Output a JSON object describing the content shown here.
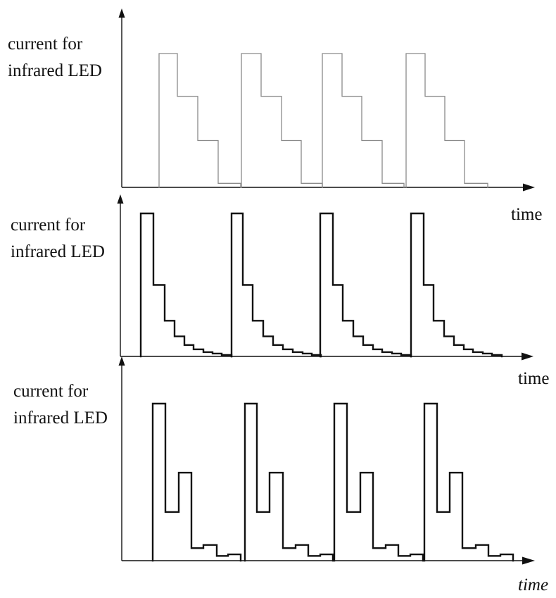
{
  "chart_data": [
    {
      "type": "line",
      "title": "",
      "ylabel": [
        "current for",
        "infrared LED"
      ],
      "xlabel": "time",
      "xlabel_italic": false,
      "color": "#8a8a8a",
      "x_range": [
        0,
        570
      ],
      "y_range": [
        0,
        100
      ],
      "pulses": [
        {
          "start": 53,
          "steps": [
            {
              "width": 26,
              "level": 100
            },
            {
              "width": 29,
              "level": 68
            },
            {
              "width": 29,
              "level": 35
            },
            {
              "width": 32,
              "level": 3
            }
          ]
        },
        {
          "start": 170,
          "steps": [
            {
              "width": 28,
              "level": 100
            },
            {
              "width": 29,
              "level": 68
            },
            {
              "width": 28,
              "level": 35
            },
            {
              "width": 30,
              "level": 3
            }
          ]
        },
        {
          "start": 285,
          "steps": [
            {
              "width": 28,
              "level": 100
            },
            {
              "width": 28,
              "level": 68
            },
            {
              "width": 29,
              "level": 35
            },
            {
              "width": 31,
              "level": 3
            }
          ]
        },
        {
          "start": 404,
          "steps": [
            {
              "width": 27,
              "level": 100
            },
            {
              "width": 28,
              "level": 68
            },
            {
              "width": 28,
              "level": 35
            },
            {
              "width": 33,
              "level": 3
            }
          ]
        }
      ]
    },
    {
      "type": "line",
      "title": "",
      "ylabel": [
        "current for",
        "infrared LED"
      ],
      "xlabel": "time",
      "xlabel_italic": false,
      "color": "#111111",
      "x_range": [
        0,
        570
      ],
      "y_range": [
        0,
        100
      ],
      "pulses": [
        {
          "start": 29,
          "steps": [
            {
              "width": 18,
              "level": 100
            },
            {
              "width": 16,
              "level": 50
            },
            {
              "width": 14,
              "level": 25
            },
            {
              "width": 14,
              "level": 14
            },
            {
              "width": 13,
              "level": 8
            },
            {
              "width": 14,
              "level": 5
            },
            {
              "width": 13,
              "level": 3
            },
            {
              "width": 13,
              "level": 2
            },
            {
              "width": 14,
              "level": 1
            }
          ]
        },
        {
          "start": 158,
          "steps": [
            {
              "width": 16,
              "level": 100
            },
            {
              "width": 14,
              "level": 50
            },
            {
              "width": 15,
              "level": 25
            },
            {
              "width": 14,
              "level": 14
            },
            {
              "width": 14,
              "level": 8
            },
            {
              "width": 14,
              "level": 5
            },
            {
              "width": 14,
              "level": 3
            },
            {
              "width": 13,
              "level": 2
            },
            {
              "width": 13,
              "level": 1
            }
          ]
        },
        {
          "start": 284,
          "steps": [
            {
              "width": 18,
              "level": 100
            },
            {
              "width": 14,
              "level": 50
            },
            {
              "width": 15,
              "level": 25
            },
            {
              "width": 14,
              "level": 14
            },
            {
              "width": 14,
              "level": 8
            },
            {
              "width": 13,
              "level": 5
            },
            {
              "width": 14,
              "level": 3
            },
            {
              "width": 13,
              "level": 2
            },
            {
              "width": 14,
              "level": 1
            }
          ]
        },
        {
          "start": 413,
          "steps": [
            {
              "width": 18,
              "level": 100
            },
            {
              "width": 14,
              "level": 50
            },
            {
              "width": 15,
              "level": 25
            },
            {
              "width": 14,
              "level": 14
            },
            {
              "width": 14,
              "level": 8
            },
            {
              "width": 13,
              "level": 5
            },
            {
              "width": 14,
              "level": 3
            },
            {
              "width": 13,
              "level": 2
            },
            {
              "width": 14,
              "level": 1
            }
          ]
        }
      ]
    },
    {
      "type": "line",
      "title": "",
      "ylabel": [
        "current for",
        "infrared LED"
      ],
      "xlabel": "time",
      "xlabel_italic": true,
      "color": "#111111",
      "x_range": [
        0,
        570
      ],
      "y_range": [
        0,
        100
      ],
      "pulses": [
        {
          "start": 44,
          "steps": [
            {
              "width": 18,
              "level": 100
            },
            {
              "width": 19,
              "level": 31
            },
            {
              "width": 18,
              "level": 56
            },
            {
              "width": 17,
              "level": 8
            },
            {
              "width": 19,
              "level": 10
            },
            {
              "width": 16,
              "level": 3
            },
            {
              "width": 18,
              "level": 4
            }
          ]
        },
        {
          "start": 175,
          "steps": [
            {
              "width": 17,
              "level": 100
            },
            {
              "width": 18,
              "level": 31
            },
            {
              "width": 19,
              "level": 56
            },
            {
              "width": 18,
              "level": 8
            },
            {
              "width": 18,
              "level": 10
            },
            {
              "width": 17,
              "level": 3
            },
            {
              "width": 18,
              "level": 4
            }
          ]
        },
        {
          "start": 302,
          "steps": [
            {
              "width": 18,
              "level": 100
            },
            {
              "width": 19,
              "level": 31
            },
            {
              "width": 18,
              "level": 56
            },
            {
              "width": 18,
              "level": 8
            },
            {
              "width": 18,
              "level": 10
            },
            {
              "width": 17,
              "level": 3
            },
            {
              "width": 18,
              "level": 4
            }
          ]
        },
        {
          "start": 430,
          "steps": [
            {
              "width": 18,
              "level": 100
            },
            {
              "width": 18,
              "level": 31
            },
            {
              "width": 18,
              "level": 56
            },
            {
              "width": 19,
              "level": 8
            },
            {
              "width": 18,
              "level": 10
            },
            {
              "width": 17,
              "level": 3
            },
            {
              "width": 18,
              "level": 4
            }
          ]
        }
      ]
    }
  ]
}
